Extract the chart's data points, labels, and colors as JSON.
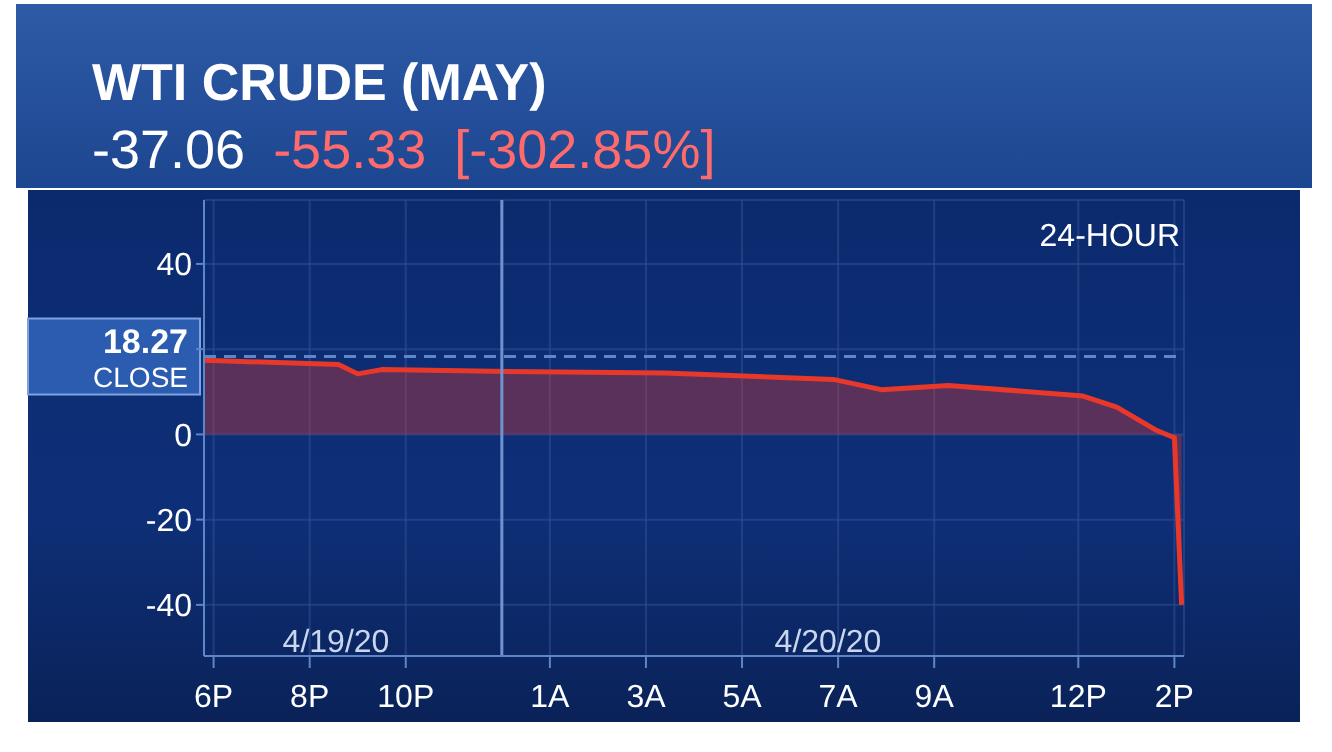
{
  "chart_data": {
    "type": "area",
    "title": "WTI CRUDE (MAY)",
    "subtitle": "-37.06",
    "annotations": [
      "-55.33",
      "[-302.85%]",
      "24-HOUR",
      "4/19/20",
      "4/20/20"
    ],
    "series": [
      {
        "color": "#e8382a",
        "x": [
          "--04-19T17:48",
          "--04-19T20:36",
          "--04-19T21:00",
          "--04-19T21:30",
          "--04-19T23:48",
          "--04-20T03:24",
          "--04-20T06:54",
          "--04-20T07:54",
          "--04-20T09:18",
          "--04-20T12:06",
          "--04-20T12:48",
          "--04-20T13:36",
          "--04-20T14:00",
          "--04-20T14:09"
        ],
        "values": [
          17.4,
          16.4,
          14.2,
          15.2,
          14.8,
          14.4,
          12.9,
          10.5,
          11.5,
          9.0,
          6.4,
          1.1,
          -0.8,
          -40
        ]
      }
    ],
    "xlim": [
      "--04-19T17:48",
      "--04-20T14:12"
    ],
    "xticks": [
      {
        "value": "--04-19T18:00",
        "label": "6P"
      },
      {
        "value": "--04-19T20:00",
        "label": "8P"
      },
      {
        "value": "--04-19T22:00",
        "label": "10P"
      },
      {
        "value": "--04-20T01:00",
        "label": "1A"
      },
      {
        "value": "--04-20T03:00",
        "label": "3A"
      },
      {
        "value": "--04-20T05:00",
        "label": "5A"
      },
      {
        "value": "--04-20T07:00",
        "label": "7A"
      },
      {
        "value": "--04-20T09:00",
        "label": "9A"
      },
      {
        "value": "--04-20T12:00",
        "label": "12P"
      },
      {
        "value": "--04-20T14:00",
        "label": "2P"
      }
    ],
    "ylim": [
      -52,
      55
    ],
    "yticks": [
      -40,
      -20,
      0,
      {
        "value": 20,
        "label": null
      },
      40
    ],
    "ref_lines": [
      {
        "axis": "y",
        "value": 18.27,
        "label": "18.27 CLOSE",
        "line_style": "dashed",
        "color": "#5f86c8"
      },
      {
        "axis": "x",
        "value": "--04-20T00:00",
        "color": "#6f93cf"
      }
    ],
    "grid": true
  }
}
